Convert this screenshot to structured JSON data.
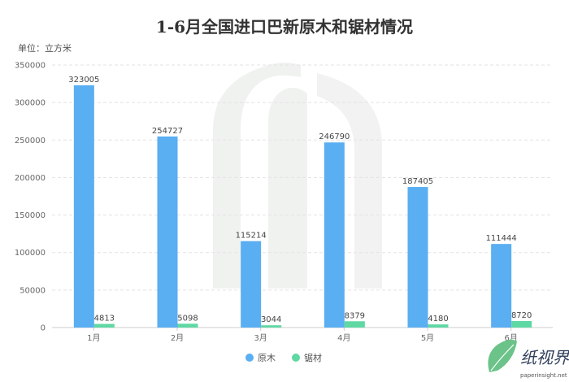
{
  "chart_data": {
    "type": "bar",
    "title": "1-6月全国进口巴新原木和锯材情况",
    "unit_label": "单位：立方米",
    "categories": [
      "1月",
      "2月",
      "3月",
      "4月",
      "5月",
      "6月"
    ],
    "series": [
      {
        "name": "原木",
        "color": "#5aaef2",
        "values": [
          323005,
          254727,
          115214,
          246790,
          187405,
          111444
        ]
      },
      {
        "name": "锯材",
        "color": "#5fd8a3",
        "values": [
          4813,
          5098,
          3044,
          8379,
          4180,
          8720
        ]
      }
    ],
    "ylim": [
      0,
      350000
    ],
    "yticks": [
      0,
      50000,
      100000,
      150000,
      200000,
      250000,
      300000,
      350000
    ],
    "grid": true,
    "legend_position": "bottom"
  },
  "brand": {
    "name_cn": "纸视界",
    "name_en": "paperinsight.net"
  }
}
